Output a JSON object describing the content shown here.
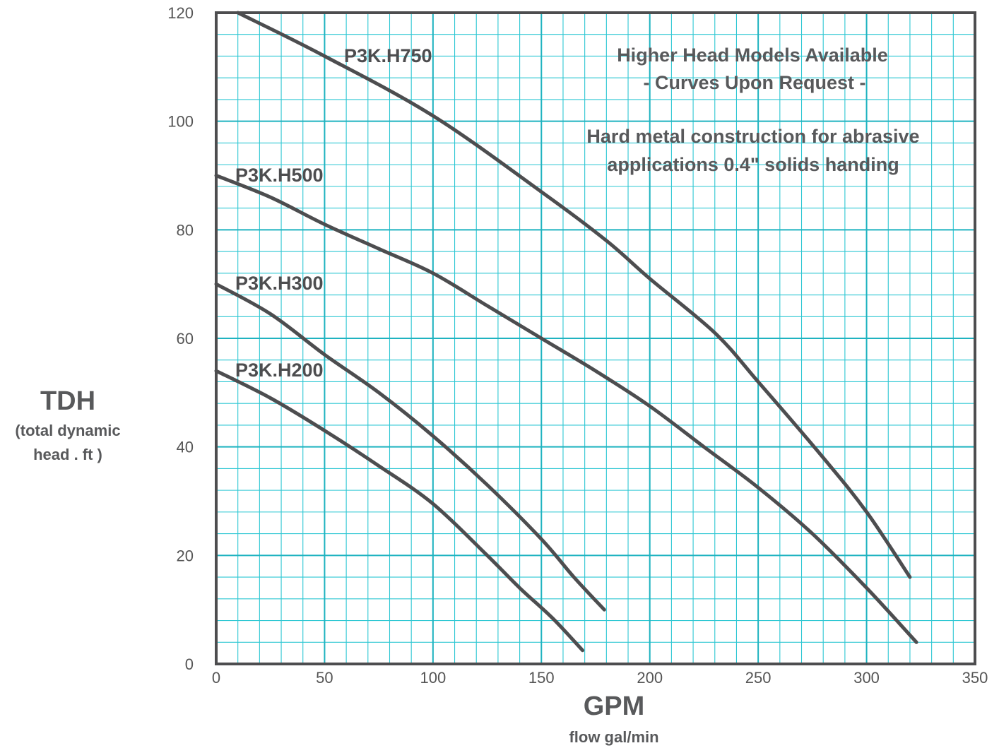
{
  "chart_data": {
    "type": "line",
    "title": "",
    "xlabel": "GPM",
    "xlabel_sub": "flow gal/min",
    "ylabel": "TDH",
    "ylabel_sub_lines": [
      "(total dynamic",
      "head . ft )"
    ],
    "xlim": [
      0,
      350
    ],
    "ylim": [
      0,
      120
    ],
    "x_ticks": [
      0,
      50,
      100,
      150,
      200,
      250,
      300,
      350
    ],
    "y_ticks": [
      0,
      20,
      40,
      60,
      80,
      100,
      120
    ],
    "x_tick_labels": [
      "0",
      "50",
      "100",
      "150",
      "200",
      "250",
      "300",
      "350"
    ],
    "y_tick_labels": [
      "0",
      "20",
      "40",
      "60",
      "80",
      "100",
      "120"
    ],
    "grid": true,
    "minor_grid_step_x": 10,
    "minor_grid_step_y": 4,
    "colors": {
      "grid": "#2ec7d3",
      "line": "#4d4d4f",
      "frame": "#4d4d4f"
    },
    "series": [
      {
        "name": "P3K.H750",
        "x": [
          10,
          50,
          100,
          150,
          180,
          200,
          230,
          250,
          280,
          300,
          320
        ],
        "y": [
          120,
          112,
          101,
          87,
          78,
          71,
          61,
          52,
          38,
          28,
          16
        ]
      },
      {
        "name": "P3K.H500",
        "x": [
          0,
          25,
          50,
          75,
          100,
          125,
          150,
          175,
          200,
          225,
          250,
          275,
          300,
          323
        ],
        "y": [
          90,
          86,
          81,
          76.5,
          72,
          66,
          60,
          54,
          47.5,
          40,
          32.5,
          24,
          14,
          4
        ]
      },
      {
        "name": "P3K.H300",
        "x": [
          0,
          25,
          50,
          75,
          100,
          125,
          150,
          165,
          179
        ],
        "y": [
          70,
          64.5,
          57,
          50,
          42,
          33,
          23,
          16,
          10
        ]
      },
      {
        "name": "P3K.H200",
        "x": [
          0,
          25,
          50,
          75,
          100,
          125,
          140,
          155,
          169
        ],
        "y": [
          54,
          49,
          43,
          36.5,
          29.5,
          20,
          14,
          8.5,
          2.5
        ]
      }
    ],
    "annotations": [
      "Higher Head Models Available",
      "- Curves Upon Request -",
      "Hard metal construction for abrasive",
      "applications 0.4\" solids handing"
    ]
  }
}
